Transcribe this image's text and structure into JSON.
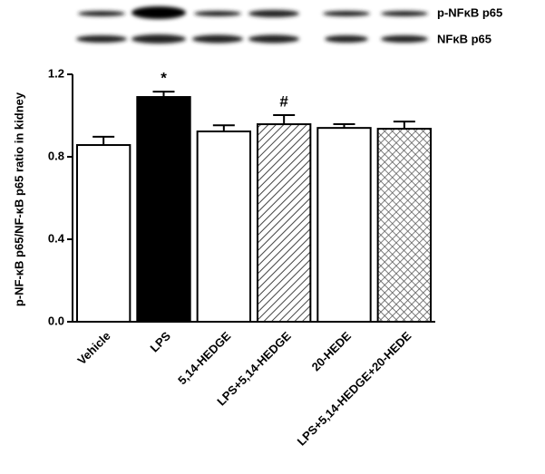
{
  "blot": {
    "labels": [
      "p-NFκB p65",
      "NFκB p65"
    ]
  },
  "chart_data": {
    "type": "bar",
    "ylabel": "p-NF-κB p65/NF-κB p65 ratio in kidney",
    "categories": [
      "Vehicle",
      "LPS",
      "5,14-HEDGE",
      "LPS+5,14-HEDGE",
      "20-HEDE",
      "LPS+5,14-HEDGE+20-HEDE"
    ],
    "values": [
      0.857,
      1.09,
      0.923,
      0.958,
      0.94,
      0.936
    ],
    "errors": [
      0.04,
      0.026,
      0.03,
      0.044,
      0.018,
      0.035
    ],
    "fills": [
      "white",
      "black",
      "white",
      "hatch",
      "white",
      "crosshatch"
    ],
    "bar_annotations": [
      null,
      "*",
      null,
      "#",
      null,
      null
    ],
    "ylim": [
      0,
      1.2
    ],
    "yticks": [
      {
        "value": 0,
        "label": "0.0"
      },
      0.4,
      0.8,
      1.2
    ]
  }
}
